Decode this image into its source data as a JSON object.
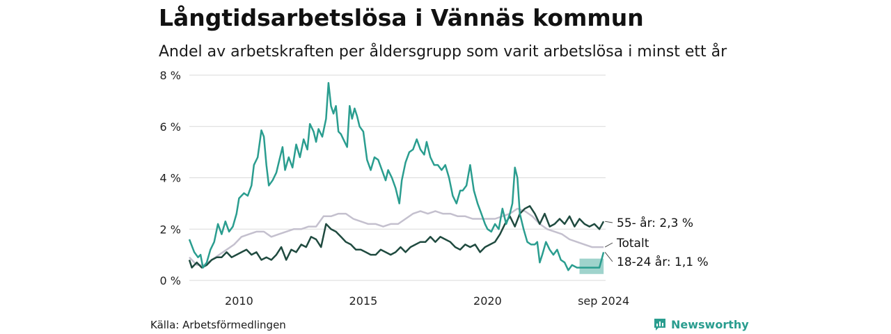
{
  "header": {
    "title": "Långtidsarbetslösa i Vännäs kommun",
    "subtitle": "Andel av arbetskraften per åldersgrupp som varit arbetslösa i minst ett år"
  },
  "footer": {
    "source": "Källa: Arbetsförmedlingen",
    "brand": "Newsworthy",
    "brand_color": "#2a9d8f"
  },
  "chart_data": {
    "type": "line",
    "x_range": [
      2008.0,
      2024.75
    ],
    "ylim": [
      0,
      8
    ],
    "yticks": [
      0,
      2,
      4,
      6,
      8
    ],
    "ytick_labels": [
      "0 %",
      "2 %",
      "4 %",
      "6 %",
      "8 %"
    ],
    "xticks": [
      2010,
      2015,
      2020,
      2024.67
    ],
    "xtick_labels": [
      "2010",
      "2015",
      "2020",
      "sep 2024"
    ],
    "grid": true,
    "series": [
      {
        "key": "young",
        "name": "18-24 år",
        "end_label": "18-24 år: 1,1 %",
        "color": "#2a9d8f",
        "points": [
          [
            2008.0,
            1.6
          ],
          [
            2008.2,
            1.1
          ],
          [
            2008.35,
            0.9
          ],
          [
            2008.45,
            1.0
          ],
          [
            2008.55,
            0.5
          ],
          [
            2008.7,
            0.7
          ],
          [
            2008.85,
            1.2
          ],
          [
            2009.0,
            1.5
          ],
          [
            2009.15,
            2.2
          ],
          [
            2009.3,
            1.8
          ],
          [
            2009.45,
            2.3
          ],
          [
            2009.6,
            1.9
          ],
          [
            2009.75,
            2.1
          ],
          [
            2009.9,
            2.6
          ],
          [
            2010.0,
            3.2
          ],
          [
            2010.2,
            3.4
          ],
          [
            2010.35,
            3.3
          ],
          [
            2010.5,
            3.7
          ],
          [
            2010.6,
            4.5
          ],
          [
            2010.75,
            4.8
          ],
          [
            2010.9,
            5.85
          ],
          [
            2011.0,
            5.6
          ],
          [
            2011.1,
            4.5
          ],
          [
            2011.2,
            3.7
          ],
          [
            2011.35,
            3.9
          ],
          [
            2011.5,
            4.2
          ],
          [
            2011.6,
            4.6
          ],
          [
            2011.75,
            5.2
          ],
          [
            2011.85,
            4.3
          ],
          [
            2012.0,
            4.8
          ],
          [
            2012.15,
            4.4
          ],
          [
            2012.3,
            5.3
          ],
          [
            2012.45,
            4.8
          ],
          [
            2012.6,
            5.5
          ],
          [
            2012.75,
            5.1
          ],
          [
            2012.85,
            6.1
          ],
          [
            2013.0,
            5.8
          ],
          [
            2013.1,
            5.4
          ],
          [
            2013.2,
            5.9
          ],
          [
            2013.35,
            5.6
          ],
          [
            2013.5,
            6.3
          ],
          [
            2013.6,
            7.7
          ],
          [
            2013.7,
            6.8
          ],
          [
            2013.8,
            6.5
          ],
          [
            2013.9,
            6.8
          ],
          [
            2014.0,
            5.8
          ],
          [
            2014.1,
            5.7
          ],
          [
            2014.2,
            5.5
          ],
          [
            2014.35,
            5.2
          ],
          [
            2014.45,
            6.8
          ],
          [
            2014.55,
            6.3
          ],
          [
            2014.65,
            6.7
          ],
          [
            2014.75,
            6.4
          ],
          [
            2014.85,
            6.0
          ],
          [
            2015.0,
            5.8
          ],
          [
            2015.15,
            4.7
          ],
          [
            2015.3,
            4.3
          ],
          [
            2015.45,
            4.8
          ],
          [
            2015.6,
            4.7
          ],
          [
            2015.75,
            4.3
          ],
          [
            2015.9,
            3.9
          ],
          [
            2016.0,
            4.3
          ],
          [
            2016.15,
            4.0
          ],
          [
            2016.3,
            3.6
          ],
          [
            2016.45,
            3.0
          ],
          [
            2016.55,
            3.9
          ],
          [
            2016.7,
            4.6
          ],
          [
            2016.85,
            5.0
          ],
          [
            2017.0,
            5.1
          ],
          [
            2017.15,
            5.5
          ],
          [
            2017.3,
            5.1
          ],
          [
            2017.45,
            4.9
          ],
          [
            2017.55,
            5.4
          ],
          [
            2017.7,
            4.8
          ],
          [
            2017.85,
            4.5
          ],
          [
            2018.0,
            4.5
          ],
          [
            2018.15,
            4.3
          ],
          [
            2018.3,
            4.5
          ],
          [
            2018.45,
            4.0
          ],
          [
            2018.6,
            3.3
          ],
          [
            2018.75,
            3.0
          ],
          [
            2018.9,
            3.5
          ],
          [
            2019.0,
            3.5
          ],
          [
            2019.15,
            3.7
          ],
          [
            2019.3,
            4.5
          ],
          [
            2019.45,
            3.5
          ],
          [
            2019.6,
            3.0
          ],
          [
            2019.75,
            2.6
          ],
          [
            2019.9,
            2.2
          ],
          [
            2020.0,
            2.0
          ],
          [
            2020.15,
            1.9
          ],
          [
            2020.3,
            2.2
          ],
          [
            2020.45,
            2.0
          ],
          [
            2020.6,
            2.8
          ],
          [
            2020.75,
            2.2
          ],
          [
            2020.9,
            2.6
          ],
          [
            2021.0,
            3.0
          ],
          [
            2021.1,
            4.4
          ],
          [
            2021.2,
            4.0
          ],
          [
            2021.3,
            2.6
          ],
          [
            2021.45,
            2.0
          ],
          [
            2021.6,
            1.5
          ],
          [
            2021.75,
            1.4
          ],
          [
            2021.9,
            1.4
          ],
          [
            2022.0,
            1.5
          ],
          [
            2022.1,
            0.7
          ],
          [
            2022.2,
            1.0
          ],
          [
            2022.35,
            1.5
          ],
          [
            2022.5,
            1.2
          ],
          [
            2022.65,
            1.0
          ],
          [
            2022.8,
            1.2
          ],
          [
            2022.95,
            0.8
          ],
          [
            2023.1,
            0.7
          ],
          [
            2023.25,
            0.4
          ],
          [
            2023.4,
            0.6
          ],
          [
            2023.6,
            0.5
          ],
          [
            2023.9,
            0.5
          ],
          [
            2024.2,
            0.5
          ],
          [
            2024.5,
            0.5
          ],
          [
            2024.67,
            1.1
          ]
        ]
      },
      {
        "key": "old",
        "name": "55- år",
        "end_label": "55- år: 2,3 %",
        "color": "#1f4a3f",
        "points": [
          [
            2008.0,
            0.8
          ],
          [
            2008.1,
            0.5
          ],
          [
            2008.3,
            0.7
          ],
          [
            2008.5,
            0.5
          ],
          [
            2008.7,
            0.6
          ],
          [
            2008.9,
            0.8
          ],
          [
            2009.1,
            0.9
          ],
          [
            2009.3,
            0.9
          ],
          [
            2009.5,
            1.1
          ],
          [
            2009.7,
            0.9
          ],
          [
            2009.9,
            1.0
          ],
          [
            2010.1,
            1.1
          ],
          [
            2010.3,
            1.2
          ],
          [
            2010.5,
            1.0
          ],
          [
            2010.7,
            1.1
          ],
          [
            2010.9,
            0.8
          ],
          [
            2011.1,
            0.9
          ],
          [
            2011.3,
            0.8
          ],
          [
            2011.5,
            1.0
          ],
          [
            2011.7,
            1.3
          ],
          [
            2011.9,
            0.8
          ],
          [
            2012.1,
            1.2
          ],
          [
            2012.3,
            1.1
          ],
          [
            2012.5,
            1.4
          ],
          [
            2012.7,
            1.3
          ],
          [
            2012.9,
            1.7
          ],
          [
            2013.1,
            1.6
          ],
          [
            2013.3,
            1.3
          ],
          [
            2013.5,
            2.2
          ],
          [
            2013.7,
            2.0
          ],
          [
            2013.9,
            1.9
          ],
          [
            2014.1,
            1.7
          ],
          [
            2014.3,
            1.5
          ],
          [
            2014.5,
            1.4
          ],
          [
            2014.7,
            1.2
          ],
          [
            2014.9,
            1.2
          ],
          [
            2015.1,
            1.1
          ],
          [
            2015.3,
            1.0
          ],
          [
            2015.5,
            1.0
          ],
          [
            2015.7,
            1.2
          ],
          [
            2015.9,
            1.1
          ],
          [
            2016.1,
            1.0
          ],
          [
            2016.3,
            1.1
          ],
          [
            2016.5,
            1.3
          ],
          [
            2016.7,
            1.1
          ],
          [
            2016.9,
            1.3
          ],
          [
            2017.1,
            1.4
          ],
          [
            2017.3,
            1.5
          ],
          [
            2017.5,
            1.5
          ],
          [
            2017.7,
            1.7
          ],
          [
            2017.9,
            1.5
          ],
          [
            2018.1,
            1.7
          ],
          [
            2018.3,
            1.6
          ],
          [
            2018.5,
            1.5
          ],
          [
            2018.7,
            1.3
          ],
          [
            2018.9,
            1.2
          ],
          [
            2019.1,
            1.4
          ],
          [
            2019.3,
            1.3
          ],
          [
            2019.5,
            1.4
          ],
          [
            2019.7,
            1.1
          ],
          [
            2019.9,
            1.3
          ],
          [
            2020.1,
            1.4
          ],
          [
            2020.3,
            1.5
          ],
          [
            2020.5,
            1.8
          ],
          [
            2020.7,
            2.2
          ],
          [
            2020.9,
            2.5
          ],
          [
            2021.1,
            2.1
          ],
          [
            2021.3,
            2.6
          ],
          [
            2021.5,
            2.8
          ],
          [
            2021.7,
            2.9
          ],
          [
            2021.9,
            2.6
          ],
          [
            2022.1,
            2.2
          ],
          [
            2022.3,
            2.6
          ],
          [
            2022.5,
            2.1
          ],
          [
            2022.7,
            2.2
          ],
          [
            2022.9,
            2.4
          ],
          [
            2023.1,
            2.2
          ],
          [
            2023.3,
            2.5
          ],
          [
            2023.5,
            2.1
          ],
          [
            2023.7,
            2.4
          ],
          [
            2023.9,
            2.2
          ],
          [
            2024.1,
            2.1
          ],
          [
            2024.3,
            2.2
          ],
          [
            2024.5,
            2.0
          ],
          [
            2024.67,
            2.3
          ]
        ]
      },
      {
        "key": "total",
        "name": "Totalt",
        "end_label": "Totalt",
        "color": "#c4c0ce",
        "points": [
          [
            2008.0,
            0.9
          ],
          [
            2008.3,
            0.6
          ],
          [
            2008.6,
            0.6
          ],
          [
            2008.9,
            0.8
          ],
          [
            2009.2,
            1.0
          ],
          [
            2009.5,
            1.2
          ],
          [
            2009.8,
            1.4
          ],
          [
            2010.1,
            1.7
          ],
          [
            2010.4,
            1.8
          ],
          [
            2010.7,
            1.9
          ],
          [
            2011.0,
            1.9
          ],
          [
            2011.3,
            1.7
          ],
          [
            2011.6,
            1.8
          ],
          [
            2011.9,
            1.9
          ],
          [
            2012.2,
            2.0
          ],
          [
            2012.5,
            2.0
          ],
          [
            2012.8,
            2.1
          ],
          [
            2013.1,
            2.1
          ],
          [
            2013.4,
            2.5
          ],
          [
            2013.7,
            2.5
          ],
          [
            2014.0,
            2.6
          ],
          [
            2014.3,
            2.6
          ],
          [
            2014.6,
            2.4
          ],
          [
            2014.9,
            2.3
          ],
          [
            2015.2,
            2.2
          ],
          [
            2015.5,
            2.2
          ],
          [
            2015.8,
            2.1
          ],
          [
            2016.1,
            2.2
          ],
          [
            2016.4,
            2.2
          ],
          [
            2016.7,
            2.4
          ],
          [
            2017.0,
            2.6
          ],
          [
            2017.3,
            2.7
          ],
          [
            2017.6,
            2.6
          ],
          [
            2017.9,
            2.7
          ],
          [
            2018.2,
            2.6
          ],
          [
            2018.5,
            2.6
          ],
          [
            2018.8,
            2.5
          ],
          [
            2019.1,
            2.5
          ],
          [
            2019.4,
            2.4
          ],
          [
            2019.7,
            2.4
          ],
          [
            2020.0,
            2.4
          ],
          [
            2020.3,
            2.4
          ],
          [
            2020.6,
            2.5
          ],
          [
            2020.9,
            2.6
          ],
          [
            2021.2,
            2.8
          ],
          [
            2021.5,
            2.7
          ],
          [
            2021.8,
            2.5
          ],
          [
            2022.1,
            2.2
          ],
          [
            2022.4,
            2.0
          ],
          [
            2022.7,
            1.9
          ],
          [
            2023.0,
            1.8
          ],
          [
            2023.3,
            1.6
          ],
          [
            2023.6,
            1.5
          ],
          [
            2023.9,
            1.4
          ],
          [
            2024.2,
            1.3
          ],
          [
            2024.67,
            1.3
          ]
        ]
      }
    ],
    "band": {
      "series": "young",
      "color": "#2a9d8f",
      "x": [
        2023.7,
        2024.67
      ],
      "y": [
        0.25,
        0.85
      ]
    }
  }
}
